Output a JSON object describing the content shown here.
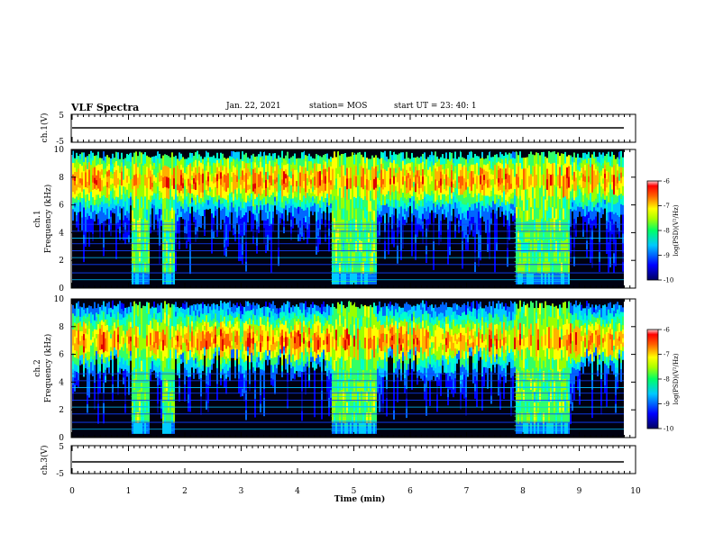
{
  "header": {
    "title": "VLF Spectra",
    "date": "Jan. 22, 2021",
    "station": "station= MOS",
    "start": "start  UT  =   23: 40: 1"
  },
  "colors": {
    "palette": [
      "#000000",
      "#00007f",
      "#0000ff",
      "#0066ff",
      "#00ccff",
      "#00ffcc",
      "#33ff66",
      "#99ff00",
      "#ffff00",
      "#ffb000",
      "#ff6000",
      "#e00000"
    ]
  },
  "chart_data": [
    {
      "type": "line",
      "panel": "ch1-waveform",
      "ylabel": "ch.1(V)",
      "ylim": [
        -5,
        5
      ],
      "yticks": [
        "5",
        "-5"
      ],
      "series": [
        {
          "values": [
            0,
            0
          ],
          "x": [
            0,
            9.8
          ]
        }
      ]
    },
    {
      "type": "heatmap",
      "panel": "ch1-spectrogram",
      "ylabel_top": "ch.1",
      "ylabel": "Frequency (kHz)",
      "ylim": [
        0,
        10
      ],
      "yticks": [
        "0",
        "2",
        "4",
        "6",
        "8",
        "10"
      ],
      "xlim": [
        0,
        10
      ],
      "colorbar": {
        "label": "log(PSD)(V²/Hz)",
        "range": [
          -10,
          -6
        ],
        "ticks": [
          "-6",
          "-7",
          "-8",
          "-9",
          "-10"
        ]
      },
      "emission_band_khz": [
        5.5,
        9.5
      ],
      "bursts_min": [
        [
          1.05,
          1.35
        ],
        [
          1.6,
          1.8
        ],
        [
          4.6,
          5.4
        ],
        [
          7.85,
          8.8
        ]
      ]
    },
    {
      "type": "heatmap",
      "panel": "ch2-spectrogram",
      "ylabel_top": "ch.2",
      "ylabel": "Frequency (kHz)",
      "ylim": [
        0,
        10
      ],
      "yticks": [
        "0",
        "2",
        "4",
        "6",
        "8",
        "10"
      ],
      "xlim": [
        0,
        10
      ],
      "colorbar": {
        "label": "log(PSD)(V²/Hz)",
        "range": [
          -10,
          -6
        ],
        "ticks": [
          "-6",
          "-7",
          "-8",
          "-9",
          "-10"
        ]
      },
      "emission_band_khz": [
        5,
        9
      ],
      "bursts_min": [
        [
          1.05,
          1.35
        ],
        [
          1.6,
          1.8
        ],
        [
          4.6,
          5.4
        ],
        [
          7.85,
          8.8
        ]
      ]
    },
    {
      "type": "line",
      "panel": "ch3-waveform",
      "ylabel": "ch.3(V)",
      "ylim": [
        -5,
        5
      ],
      "yticks": [
        "5",
        "-5"
      ],
      "xlabel": "Time  (min)",
      "xlim": [
        0,
        10
      ],
      "xticks": [
        "0",
        "1",
        "2",
        "3",
        "4",
        "5",
        "6",
        "7",
        "8",
        "9",
        "10"
      ],
      "series": [
        {
          "values": [
            0,
            0
          ],
          "x": [
            0,
            9.8
          ]
        }
      ]
    }
  ]
}
